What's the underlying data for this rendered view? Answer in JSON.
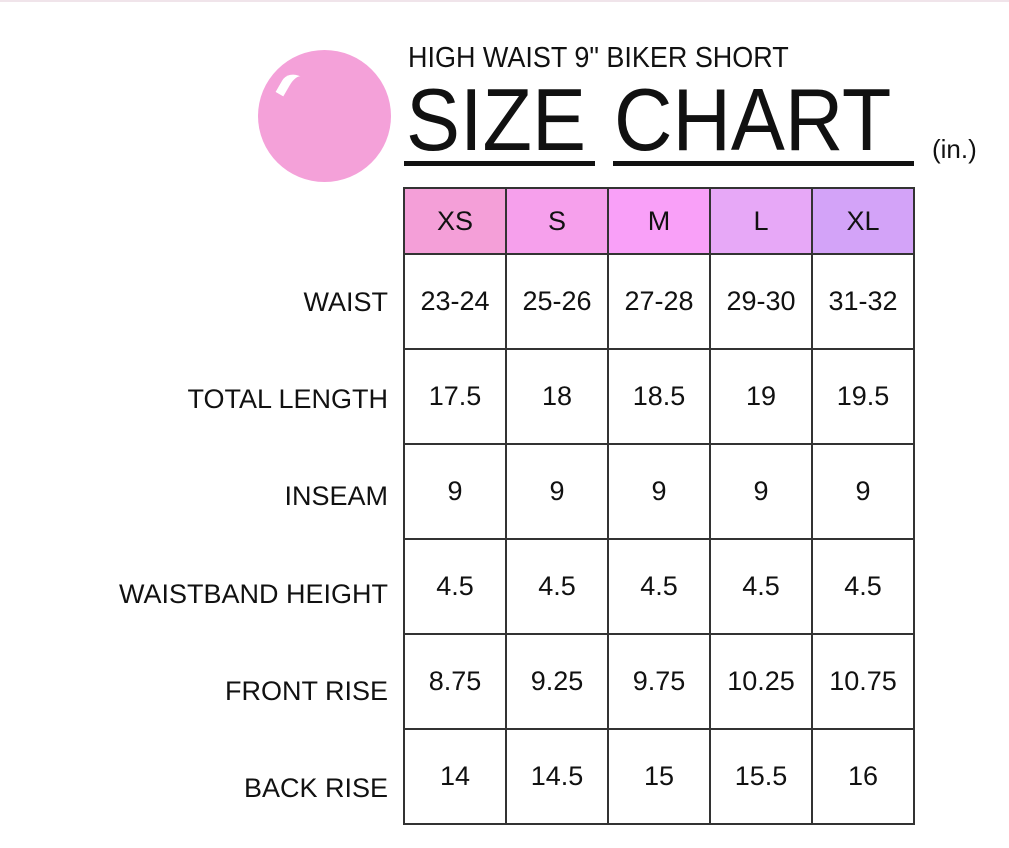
{
  "subtitle": "HIGH WAIST 9\" BIKER SHORT",
  "title_word1": "SIZE",
  "title_word2": "CHART",
  "unit": "(in.)",
  "sizes": [
    "XS",
    "S",
    "M",
    "L",
    "XL"
  ],
  "header_colors": [
    "#f49fd8",
    "#f6a0ec",
    "#f9a0f8",
    "#e7a8f7",
    "#d3a3f8"
  ],
  "accent_color": "#f4a1d9",
  "rows": [
    {
      "label": "WAIST",
      "values": [
        "23-24",
        "25-26",
        "27-28",
        "29-30",
        "31-32"
      ]
    },
    {
      "label": "TOTAL LENGTH",
      "values": [
        "17.5",
        "18",
        "18.5",
        "19",
        "19.5"
      ]
    },
    {
      "label": "INSEAM",
      "values": [
        "9",
        "9",
        "9",
        "9",
        "9"
      ]
    },
    {
      "label": "WAISTBAND HEIGHT",
      "values": [
        "4.5",
        "4.5",
        "4.5",
        "4.5",
        "4.5"
      ]
    },
    {
      "label": "FRONT RISE",
      "values": [
        "8.75",
        "9.25",
        "9.75",
        "10.25",
        "10.75"
      ]
    },
    {
      "label": "BACK RISE",
      "values": [
        "14",
        "14.5",
        "15",
        "15.5",
        "16"
      ]
    }
  ]
}
